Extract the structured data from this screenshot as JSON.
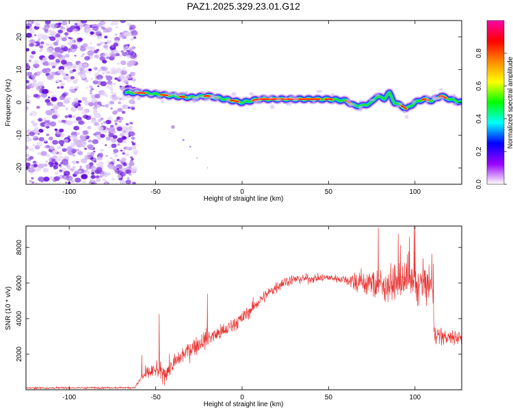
{
  "title": "PAZ1.2025.329.23.01.G12",
  "chart_data": [
    {
      "type": "heatmap",
      "xlabel": "Height of straight line (km)",
      "ylabel": "Frequency (Hz)",
      "xlim": [
        -125,
        127
      ],
      "ylim": [
        -25,
        25
      ],
      "xticks": [
        -100,
        -50,
        0,
        50,
        100
      ],
      "yticks": [
        -20,
        -10,
        0,
        10,
        20
      ],
      "noise_region": [
        -125,
        -63
      ],
      "ridge": {
        "x": [
          -67,
          -60,
          -50,
          -40,
          -30,
          -20,
          -15,
          -10,
          -5,
          0,
          5,
          10,
          20,
          30,
          40,
          50,
          60,
          65,
          70,
          75,
          78,
          82,
          85,
          88,
          92,
          95,
          100,
          105,
          110,
          115,
          120,
          127
        ],
        "y": [
          3,
          3,
          2.5,
          2,
          1.5,
          2,
          1.5,
          1,
          0.5,
          0,
          0.5,
          1,
          1,
          1,
          1,
          1,
          0.5,
          -1,
          -1,
          0,
          2,
          1,
          3,
          0,
          -1,
          -2,
          0,
          1,
          0.5,
          2,
          1,
          0
        ]
      },
      "colorbar": {
        "label": "Normalized spectral amplitude",
        "range": [
          0,
          1
        ],
        "ticks": [
          0.0,
          0.2,
          0.4,
          0.6,
          0.8
        ],
        "tick_labels": [
          "0.0",
          "0.2",
          "0.4",
          "0.6",
          "0.8"
        ],
        "colors": [
          "#ffffff",
          "#9900ff",
          "#0000ff",
          "#00ffff",
          "#00ff00",
          "#ffff00",
          "#ff8800",
          "#ff0000",
          "#ff00aa"
        ]
      }
    },
    {
      "type": "line",
      "xlabel": "Height of straight line (km)",
      "ylabel": "SNR (10 * v/v)",
      "xlim": [
        -125,
        127
      ],
      "ylim": [
        0,
        9200
      ],
      "xticks": [
        -100,
        -50,
        0,
        50,
        100
      ],
      "yticks": [
        2000,
        4000,
        6000,
        8000
      ],
      "color": "#e8312f",
      "envelope": {
        "x": [
          -125,
          -62,
          -58,
          -55,
          -50,
          -45,
          -40,
          -35,
          -30,
          -25,
          -20,
          -15,
          -10,
          -5,
          0,
          5,
          10,
          15,
          20,
          25,
          30,
          40,
          50,
          60,
          65,
          70,
          75,
          80,
          85,
          90,
          95,
          100,
          105,
          110,
          111,
          115,
          120,
          127
        ],
        "y": [
          100,
          120,
          700,
          900,
          1100,
          900,
          1400,
          1900,
          2300,
          2600,
          2900,
          3100,
          3300,
          3700,
          4000,
          4500,
          5000,
          5400,
          5800,
          6100,
          6200,
          6250,
          6300,
          6200,
          6100,
          6000,
          6000,
          5900,
          5900,
          6000,
          6000,
          5900,
          5900,
          5800,
          3200,
          3000,
          2900,
          3000
        ]
      },
      "spread": {
        "x": [
          -125,
          -62,
          -58,
          -40,
          -20,
          0,
          20,
          40,
          60,
          65,
          110,
          111,
          127
        ],
        "y": [
          60,
          60,
          450,
          700,
          650,
          500,
          450,
          300,
          300,
          900,
          1500,
          600,
          600
        ]
      },
      "spikes": {
        "x": [
          -58,
          -48,
          -20
        ],
        "y": [
          1950,
          4250,
          5400
        ]
      }
    }
  ]
}
